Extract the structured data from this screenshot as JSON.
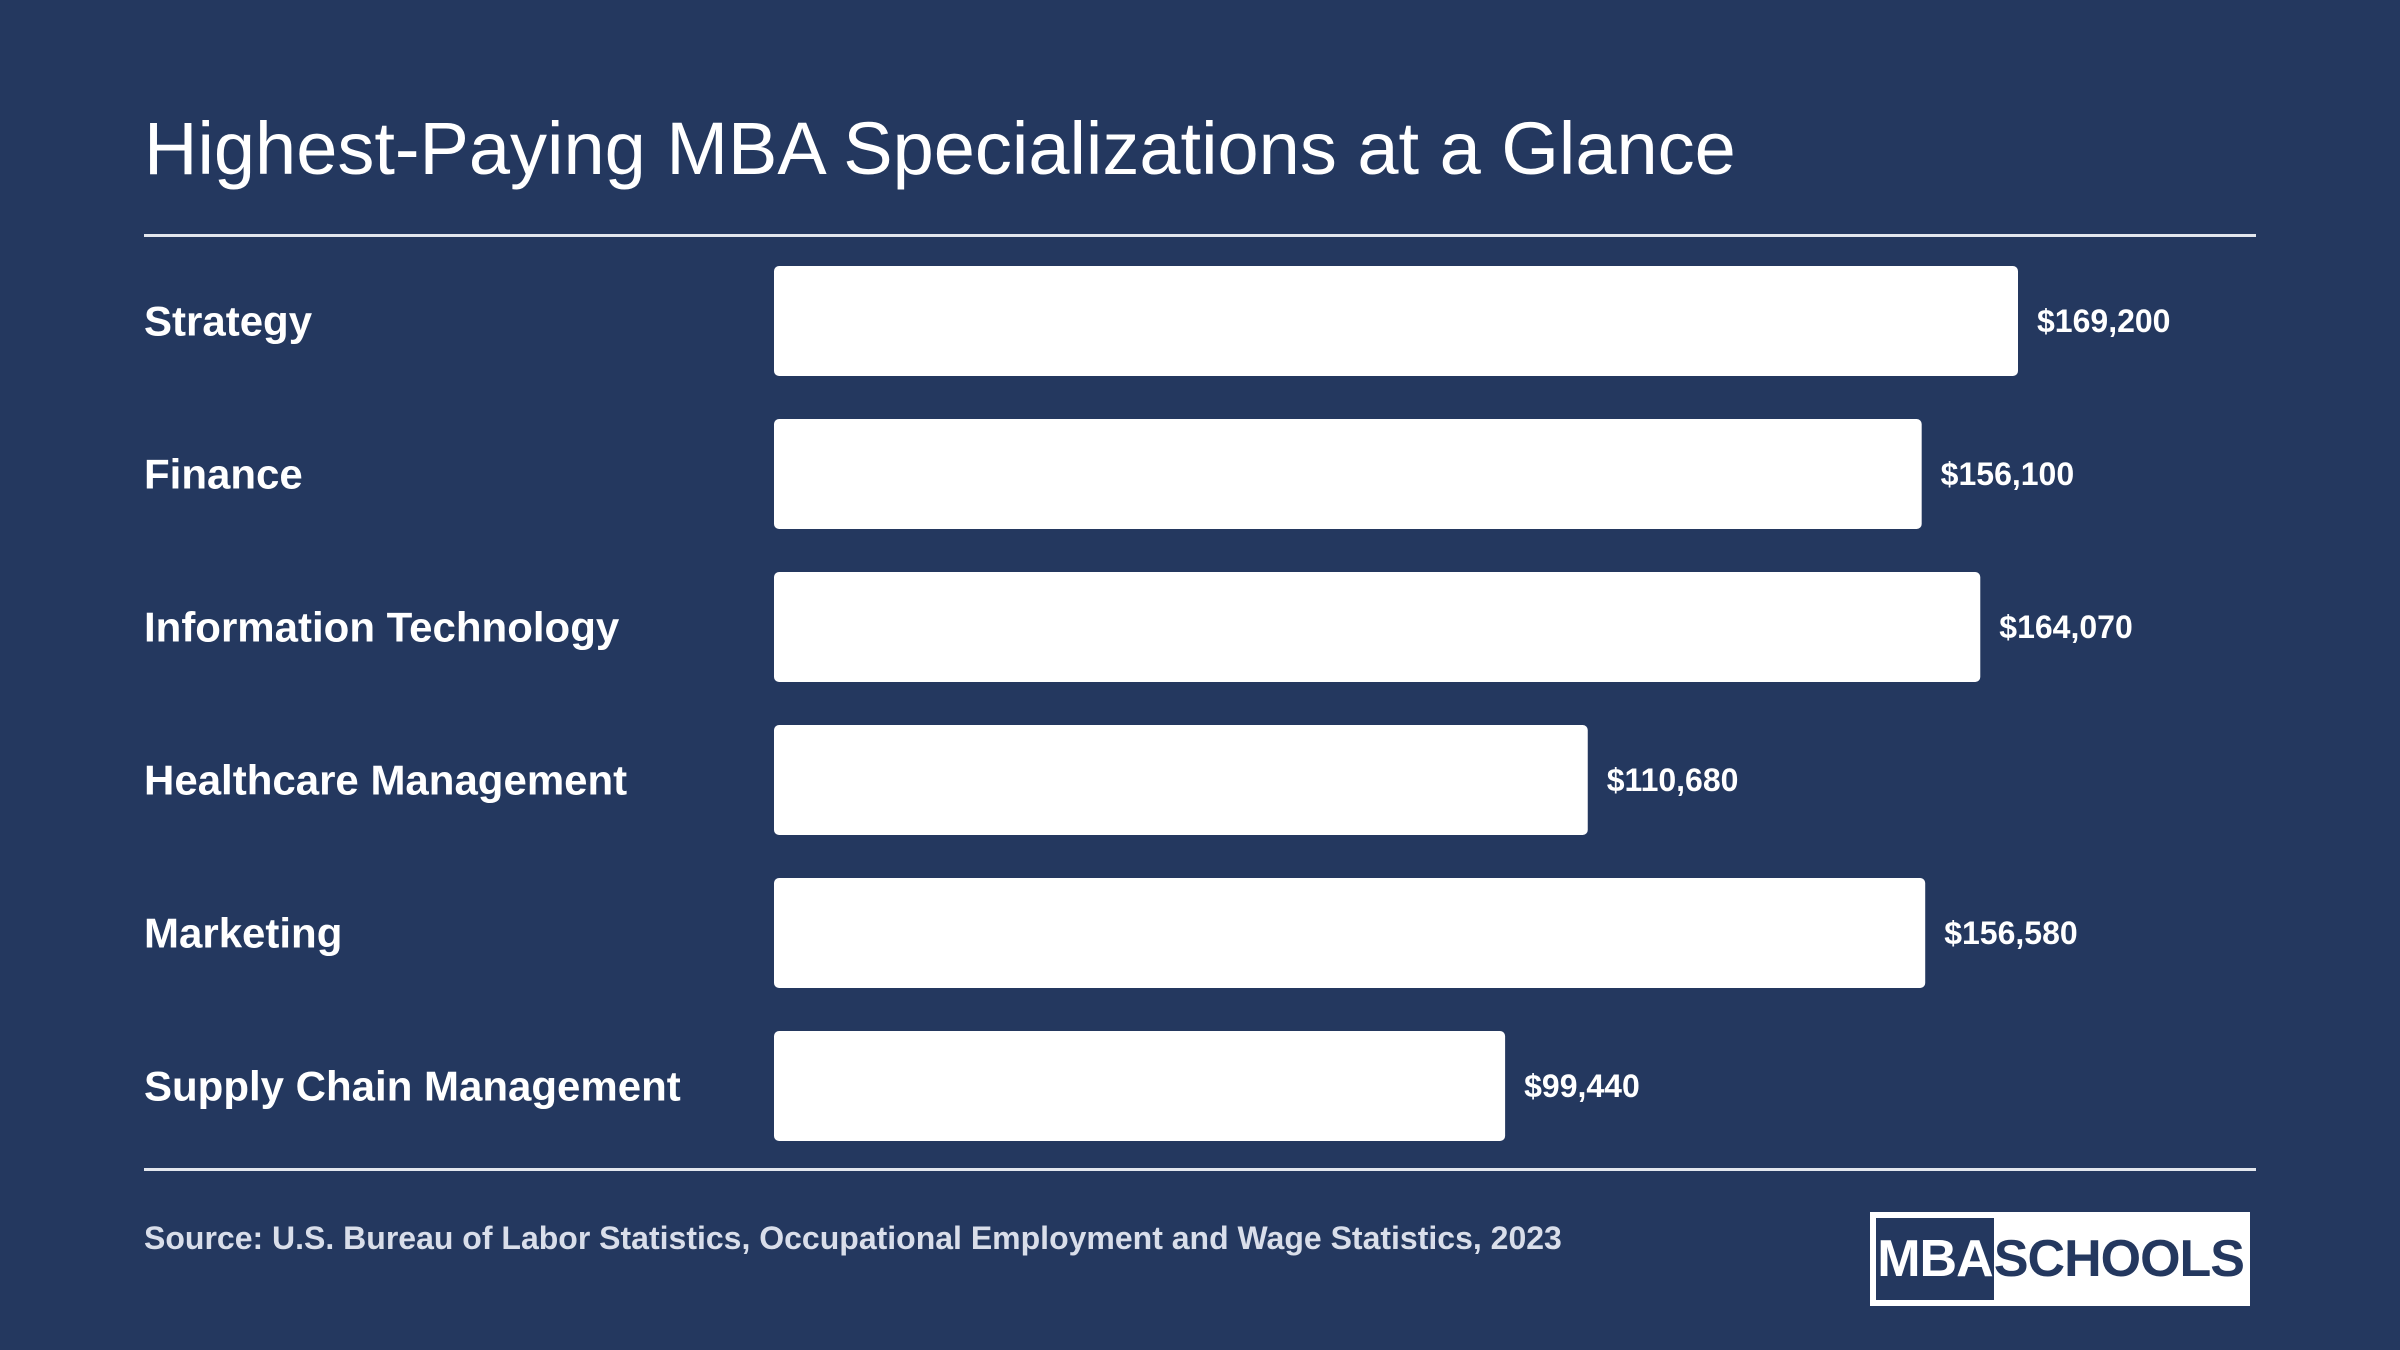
{
  "theme": {
    "background": "#24385f",
    "bar_color": "#ffffff",
    "text_color": "#ffffff"
  },
  "chart_data": {
    "type": "bar",
    "orientation": "horizontal",
    "title": "Highest-Paying MBA Specializations at a Glance",
    "categories": [
      "Strategy",
      "Finance",
      "Information Technology",
      "Healthcare Management",
      "Marketing",
      "Supply Chain Management"
    ],
    "values": [
      169200,
      156100,
      164070,
      110680,
      156580,
      99440
    ],
    "value_labels": [
      "$169,200",
      "$156,100",
      "$164,070",
      "$110,680",
      "$156,580",
      "$99,440"
    ],
    "xlim": [
      0,
      169200
    ],
    "grid": false,
    "legend": "none"
  },
  "footer": {
    "source": "Source: U.S. Bureau of Labor Statistics, Occupational Employment and Wage Statistics, 2023"
  },
  "logo": {
    "left_text": "MBA",
    "right_text": "SCHOOLS"
  }
}
